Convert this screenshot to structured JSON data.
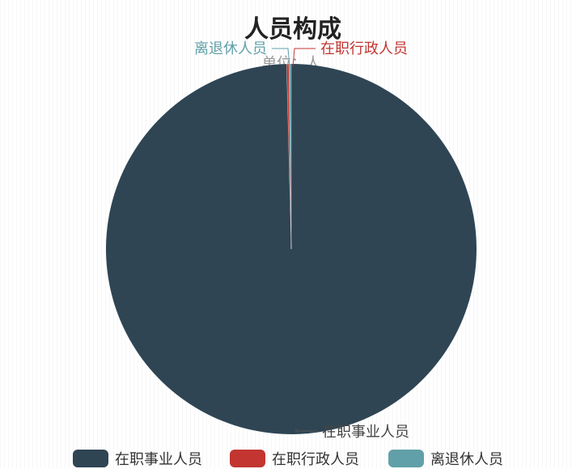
{
  "chart_data": {
    "type": "pie",
    "title": "人员构成",
    "subtitle": "单位：人",
    "categories": [
      "在职事业人员",
      "在职行政人员",
      "离退休人员"
    ],
    "values": [
      996,
      2,
      2
    ],
    "value_note": "values approximate; 在职事业人员 occupies nearly the whole pie",
    "colors": [
      "#2f4554",
      "#c23531",
      "#61a0a8"
    ],
    "legend_position": "bottom"
  }
}
